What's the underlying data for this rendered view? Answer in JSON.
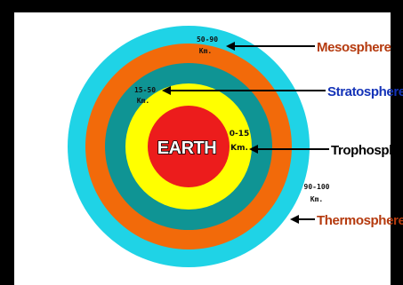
{
  "colors": {
    "background": "#000000",
    "panel": "#ffffff",
    "thermosphere": "#1fd3e6",
    "mesosphere": "#f26a0a",
    "stratosphere": "#0f9494",
    "troposphere": "#ffff00",
    "earth": "#ec1c1c",
    "mesosphere_label": "#b53a0e",
    "stratosphere_label": "#1433b8",
    "troposphere_label": "#000000",
    "thermosphere_label": "#b53a0e"
  },
  "labels": {
    "earth": "EARTH",
    "mesosphere": "Mesosphere",
    "stratosphere": "Stratosphere",
    "troposphere": "Trophosphere",
    "thermosphere": "Thermosphere"
  },
  "ranges": {
    "mesosphere": {
      "value": "50-90",
      "unit": "Km."
    },
    "stratosphere": {
      "value": "15-50",
      "unit": "Km."
    },
    "troposphere": {
      "value": "0-15",
      "unit": "Km."
    },
    "thermosphere": {
      "value": "90-100",
      "unit": "Km."
    }
  }
}
